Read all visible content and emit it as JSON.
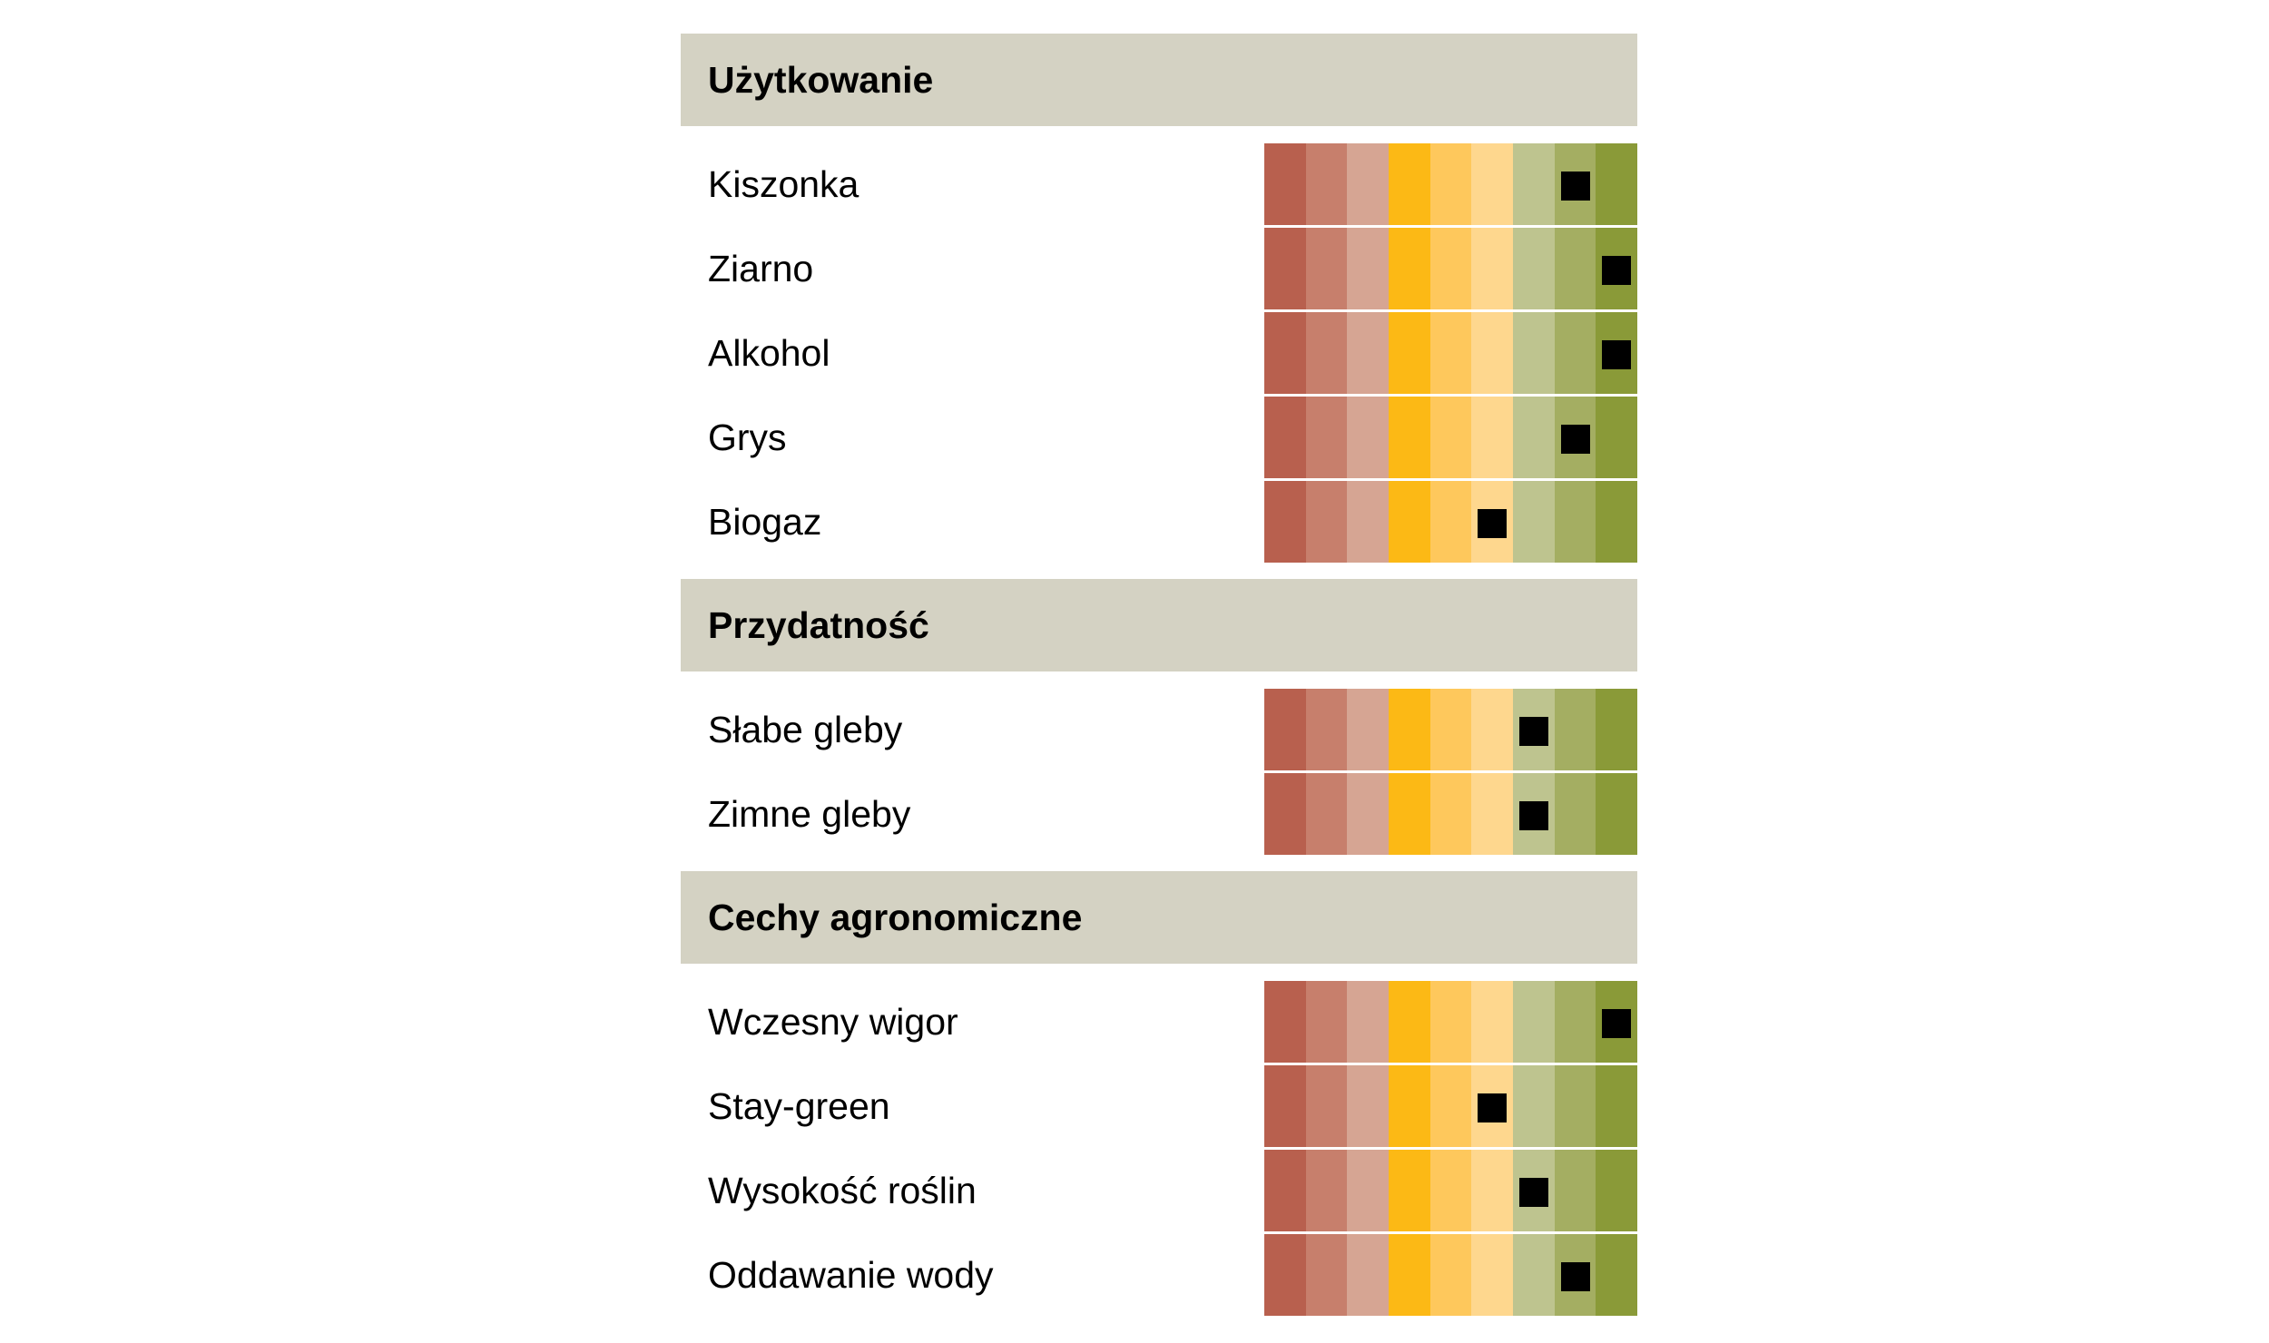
{
  "chart_data": {
    "type": "table",
    "scale_min": 1,
    "scale_max": 9,
    "scale_colors": [
      "#b8604e",
      "#c77f6c",
      "#d6a593",
      "#fcb915",
      "#fec85c",
      "#fed78e",
      "#bec48f",
      "#a4ae62",
      "#8a9a38"
    ],
    "marker_color": "#000000",
    "sections": [
      {
        "title": "Użytkowanie",
        "rows": [
          {
            "label": "Kiszonka",
            "value": 8
          },
          {
            "label": "Ziarno",
            "value": 9
          },
          {
            "label": "Alkohol",
            "value": 9
          },
          {
            "label": "Grys",
            "value": 8
          },
          {
            "label": "Biogaz",
            "value": 6
          }
        ]
      },
      {
        "title": "Przydatność",
        "rows": [
          {
            "label": "Słabe gleby",
            "value": 7
          },
          {
            "label": "Zimne gleby",
            "value": 7
          }
        ]
      },
      {
        "title": "Cechy agronomiczne",
        "rows": [
          {
            "label": "Wczesny wigor",
            "value": 9
          },
          {
            "label": "Stay-green",
            "value": 6
          },
          {
            "label": "Wysokość roślin",
            "value": 7
          },
          {
            "label": "Oddawanie wody",
            "value": 8
          }
        ]
      }
    ]
  }
}
